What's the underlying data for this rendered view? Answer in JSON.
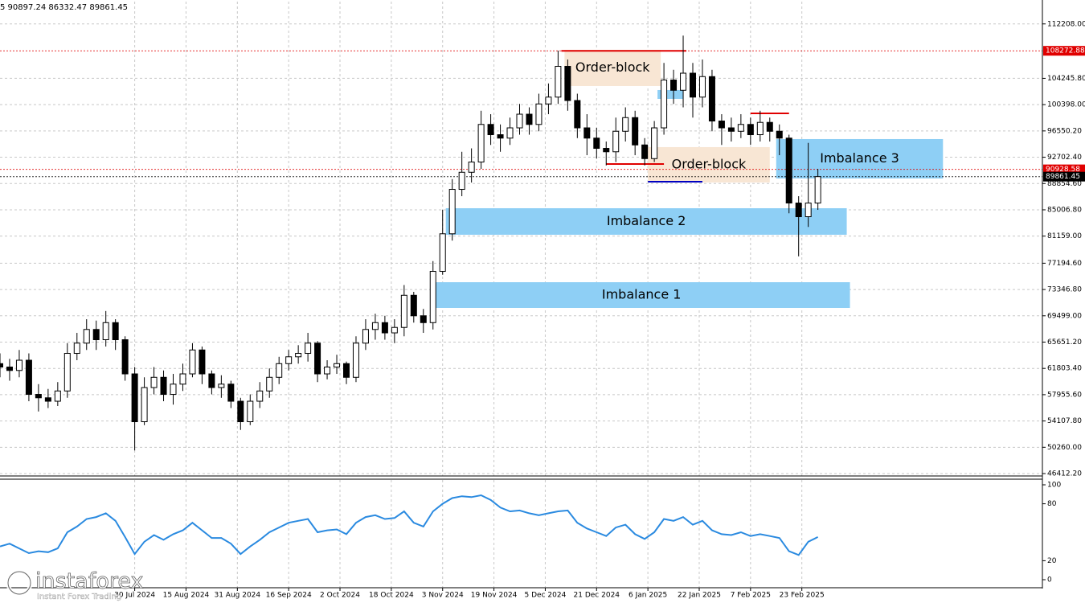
{
  "header_text": "5 90897.24 86332.47 89861.45",
  "watermark": {
    "title": "instaforex",
    "subtitle": "Instant Forex Trading"
  },
  "chart_data": {
    "type": "candlestick",
    "x": [
      "2024-06-18",
      "2024-06-21",
      "2024-06-24",
      "2024-06-27",
      "2024-06-30",
      "2024-07-03",
      "2024-07-06",
      "2024-07-09",
      "2024-07-12",
      "2024-07-15",
      "2024-07-18",
      "2024-07-21",
      "2024-07-24",
      "2024-07-27",
      "2024-07-30",
      "2024-08-02",
      "2024-08-05",
      "2024-08-08",
      "2024-08-11",
      "2024-08-14",
      "2024-08-17",
      "2024-08-20",
      "2024-08-23",
      "2024-08-26",
      "2024-08-29",
      "2024-09-01",
      "2024-09-04",
      "2024-09-07",
      "2024-09-10",
      "2024-09-13",
      "2024-09-16",
      "2024-09-19",
      "2024-09-22",
      "2024-09-25",
      "2024-09-28",
      "2024-10-01",
      "2024-10-04",
      "2024-10-07",
      "2024-10-10",
      "2024-10-13",
      "2024-10-16",
      "2024-10-19",
      "2024-10-22",
      "2024-10-25",
      "2024-10-28",
      "2024-10-31",
      "2024-11-03",
      "2024-11-06",
      "2024-11-09",
      "2024-11-12",
      "2024-11-15",
      "2024-11-18",
      "2024-11-21",
      "2024-11-24",
      "2024-11-27",
      "2024-11-30",
      "2024-12-03",
      "2024-12-06",
      "2024-12-09",
      "2024-12-12",
      "2024-12-15",
      "2024-12-18",
      "2024-12-21",
      "2024-12-24",
      "2024-12-27",
      "2024-12-30",
      "2025-01-02",
      "2025-01-05",
      "2025-01-08",
      "2025-01-11",
      "2025-01-14",
      "2025-01-17",
      "2025-01-20",
      "2025-01-23",
      "2025-01-26",
      "2025-01-29",
      "2025-02-01",
      "2025-02-04",
      "2025-02-07",
      "2025-02-10",
      "2025-02-13",
      "2025-02-16",
      "2025-02-19",
      "2025-02-22",
      "2025-02-25",
      "2025-02-28"
    ],
    "open": [
      62500,
      62000,
      61500,
      63000,
      58000,
      57500,
      57000,
      58500,
      64000,
      65500,
      67500,
      66000,
      68500,
      66000,
      61000,
      54000,
      59000,
      60500,
      58000,
      59500,
      61000,
      64500,
      61000,
      59000,
      59500,
      57000,
      54000,
      57000,
      58500,
      60500,
      62500,
      63500,
      64000,
      65500,
      61000,
      62000,
      62500,
      60500,
      65500,
      67500,
      68500,
      67000,
      67800,
      72500,
      69500,
      68500,
      76000,
      81500,
      88000,
      90500,
      92000,
      97500,
      96000,
      95500,
      97000,
      99000,
      97500,
      100500,
      101500,
      106000,
      101000,
      97000,
      95500,
      94000,
      93500,
      96500,
      98500,
      94500,
      92500,
      97000,
      104000,
      102500,
      105000,
      101500,
      104500,
      98000,
      97000,
      96500,
      97500,
      96000,
      97800,
      96500,
      95500,
      86000,
      84000,
      86000
    ],
    "high": [
      64000,
      63200,
      64500,
      64000,
      59500,
      58800,
      59800,
      65500,
      67000,
      69000,
      68800,
      70200,
      69000,
      66500,
      62000,
      60500,
      62000,
      61500,
      61000,
      62500,
      65500,
      65000,
      61500,
      60800,
      60000,
      57500,
      58000,
      59800,
      61800,
      63500,
      64500,
      65200,
      67000,
      65800,
      63000,
      63800,
      62800,
      66500,
      69000,
      69800,
      69500,
      69000,
      74000,
      73000,
      70500,
      77500,
      85000,
      89500,
      93500,
      94000,
      99500,
      99000,
      97500,
      98500,
      100500,
      100000,
      102000,
      103500,
      108300,
      107000,
      102000,
      99000,
      97000,
      95000,
      98500,
      100000,
      99500,
      95500,
      98000,
      106500,
      105500,
      110500,
      106500,
      107000,
      105500,
      99000,
      98500,
      99000,
      98500,
      99500,
      98500,
      97500,
      96000,
      87000,
      94800,
      91000
    ],
    "low": [
      60500,
      60000,
      60500,
      57000,
      55500,
      56000,
      56300,
      57500,
      63000,
      64500,
      64500,
      65000,
      64500,
      60000,
      49800,
      53500,
      58000,
      57000,
      56500,
      58500,
      60500,
      59500,
      58000,
      57500,
      56000,
      52800,
      53500,
      56000,
      57500,
      59500,
      61500,
      62500,
      62800,
      59800,
      60200,
      61000,
      59500,
      59800,
      64500,
      66000,
      66000,
      65500,
      66500,
      68500,
      67000,
      67500,
      75500,
      80500,
      87000,
      89000,
      91000,
      94500,
      93500,
      94500,
      96000,
      96000,
      96500,
      99000,
      100500,
      99500,
      95500,
      93000,
      92500,
      91500,
      92000,
      95000,
      93000,
      91500,
      92000,
      96000,
      100500,
      100000,
      98500,
      100000,
      96500,
      94500,
      95000,
      95500,
      94500,
      95000,
      95000,
      93000,
      84500,
      78200,
      82500,
      85000
    ],
    "close": [
      62000,
      61500,
      63000,
      58000,
      57500,
      57000,
      58500,
      64000,
      65500,
      67500,
      66000,
      68500,
      66000,
      61000,
      54000,
      59000,
      60500,
      58000,
      59500,
      61000,
      64500,
      61000,
      59000,
      59500,
      57000,
      54000,
      57000,
      58500,
      60500,
      62500,
      63500,
      64000,
      65500,
      61000,
      62000,
      62500,
      60500,
      65500,
      67500,
      68500,
      67000,
      67800,
      72500,
      69500,
      68500,
      76000,
      81500,
      88000,
      90500,
      92000,
      97500,
      96000,
      95500,
      97000,
      99000,
      97500,
      100500,
      101500,
      106000,
      101000,
      97000,
      95500,
      94000,
      93500,
      96500,
      98500,
      94500,
      92500,
      97000,
      104000,
      102500,
      105000,
      101500,
      104500,
      98000,
      97000,
      96500,
      97500,
      96000,
      97800,
      96500,
      95500,
      86000,
      84000,
      86000,
      89861.45
    ],
    "xlim": [
      "2024-06-18",
      "2025-05-09"
    ],
    "xticks": [
      {
        "value": "2024-07-30",
        "label": "30 Jul 2024"
      },
      {
        "value": "2024-08-15",
        "label": "15 Aug 2024"
      },
      {
        "value": "2024-08-31",
        "label": "31 Aug 2024"
      },
      {
        "value": "2024-09-16",
        "label": "16 Sep 2024"
      },
      {
        "value": "2024-10-02",
        "label": "2 Oct 2024"
      },
      {
        "value": "2024-10-18",
        "label": "18 Oct 2024"
      },
      {
        "value": "2024-11-03",
        "label": "3 Nov 2024"
      },
      {
        "value": "2024-11-19",
        "label": "19 Nov 2024"
      },
      {
        "value": "2024-12-05",
        "label": "5 Dec 2024"
      },
      {
        "value": "2024-12-21",
        "label": "21 Dec 2024"
      },
      {
        "value": "2025-01-06",
        "label": "6 Jan 2025"
      },
      {
        "value": "2025-01-22",
        "label": "22 Jan 2025"
      },
      {
        "value": "2025-02-07",
        "label": "7 Feb 2025"
      },
      {
        "value": "2025-02-23",
        "label": "23 Feb 2025"
      }
    ],
    "ylim": [
      46062,
      115473
    ],
    "yticks": [
      {
        "value": 112208,
        "label": "112208.00"
      },
      {
        "value": 104245.8,
        "label": "104245.80"
      },
      {
        "value": 100398,
        "label": "100398.00"
      },
      {
        "value": 96550.2,
        "label": "96550.20"
      },
      {
        "value": 92702.4,
        "label": "92702.40"
      },
      {
        "value": 88854.6,
        "label": "88854.60"
      },
      {
        "value": 85006.8,
        "label": "85006.80"
      },
      {
        "value": 81159,
        "label": "81159.00"
      },
      {
        "value": 77194.6,
        "label": "77194.60"
      },
      {
        "value": 73346.8,
        "label": "73346.80"
      },
      {
        "value": 69499,
        "label": "69499.00"
      },
      {
        "value": 65651.2,
        "label": "65651.20"
      },
      {
        "value": 61803.4,
        "label": "61803.40"
      },
      {
        "value": 57955.6,
        "label": "57955.60"
      },
      {
        "value": 54107.8,
        "label": "54107.80"
      },
      {
        "value": 50260,
        "label": "50260.00"
      },
      {
        "value": 46412.2,
        "label": "46412.20"
      }
    ],
    "grid": true,
    "bull_color": "#ffffff",
    "bear_color": "#000000",
    "hlines": [
      {
        "value": 108272.88,
        "label": "108272.88",
        "color": "#e00000"
      },
      {
        "value": 90928.58,
        "label": "90928.58",
        "color": "#e00000"
      },
      {
        "value": 89861.45,
        "label": "89861.45",
        "color": "#000000"
      }
    ],
    "segments": [
      {
        "value": 108272.88,
        "from": "2024-12-10",
        "to": "2025-01-18",
        "color": "#e00000"
      },
      {
        "value": 99122,
        "from": "2025-02-07",
        "to": "2025-02-19",
        "color": "#e00000"
      },
      {
        "value": 91710,
        "from": "2024-12-24",
        "to": "2025-01-11",
        "color": "#e00000"
      },
      {
        "value": 89120,
        "from": "2025-01-06",
        "to": "2025-01-23",
        "color": "#0000c0"
      }
    ],
    "zones": [
      {
        "label": "Order-block",
        "from": "2024-12-11",
        "to": "2025-01-10",
        "low": 103122,
        "high": 108416,
        "color": "#f8e6d4"
      },
      {
        "label": "Order-block",
        "from": "2025-01-06",
        "to": "2025-02-13",
        "low": 89006,
        "high": 94182,
        "color": "#f8e6d4"
      },
      {
        "from": "2025-01-09",
        "to": "2025-01-17",
        "low": 101240,
        "high": 102534,
        "color": "#8ecff5"
      },
      {
        "label": "Imbalance 3",
        "from": "2025-02-15",
        "to": "2025-04-08",
        "low": 89593,
        "high": 95358,
        "color": "#8ecff5"
      },
      {
        "label": "Imbalance 2",
        "from": "2024-11-04",
        "to": "2025-03-09",
        "low": 81356,
        "high": 85239,
        "color": "#8ecff5"
      },
      {
        "label": "Imbalance 1",
        "from": "2024-10-31",
        "to": "2025-03-10",
        "low": 70651,
        "high": 74414,
        "color": "#8ecff5"
      }
    ],
    "indicator": {
      "color": "#2a8ae0",
      "ylim": [
        0,
        100
      ],
      "yticks": [
        100,
        80,
        20,
        0
      ],
      "values": [
        35,
        38,
        33,
        28,
        30,
        29,
        33,
        50,
        56,
        64,
        66,
        70,
        62,
        45,
        27,
        40,
        47,
        42,
        48,
        52,
        60,
        52,
        44,
        44,
        38,
        27,
        35,
        42,
        50,
        55,
        60,
        62,
        64,
        50,
        52,
        53,
        48,
        60,
        66,
        68,
        64,
        65,
        72,
        60,
        56,
        72,
        80,
        86,
        88,
        87,
        89,
        84,
        76,
        72,
        73,
        70,
        68,
        70,
        72,
        73,
        60,
        54,
        50,
        46,
        55,
        58,
        48,
        43,
        50,
        64,
        62,
        66,
        58,
        62,
        52,
        48,
        47,
        50,
        46,
        48,
        46,
        44,
        30,
        26,
        40,
        45
      ]
    }
  }
}
